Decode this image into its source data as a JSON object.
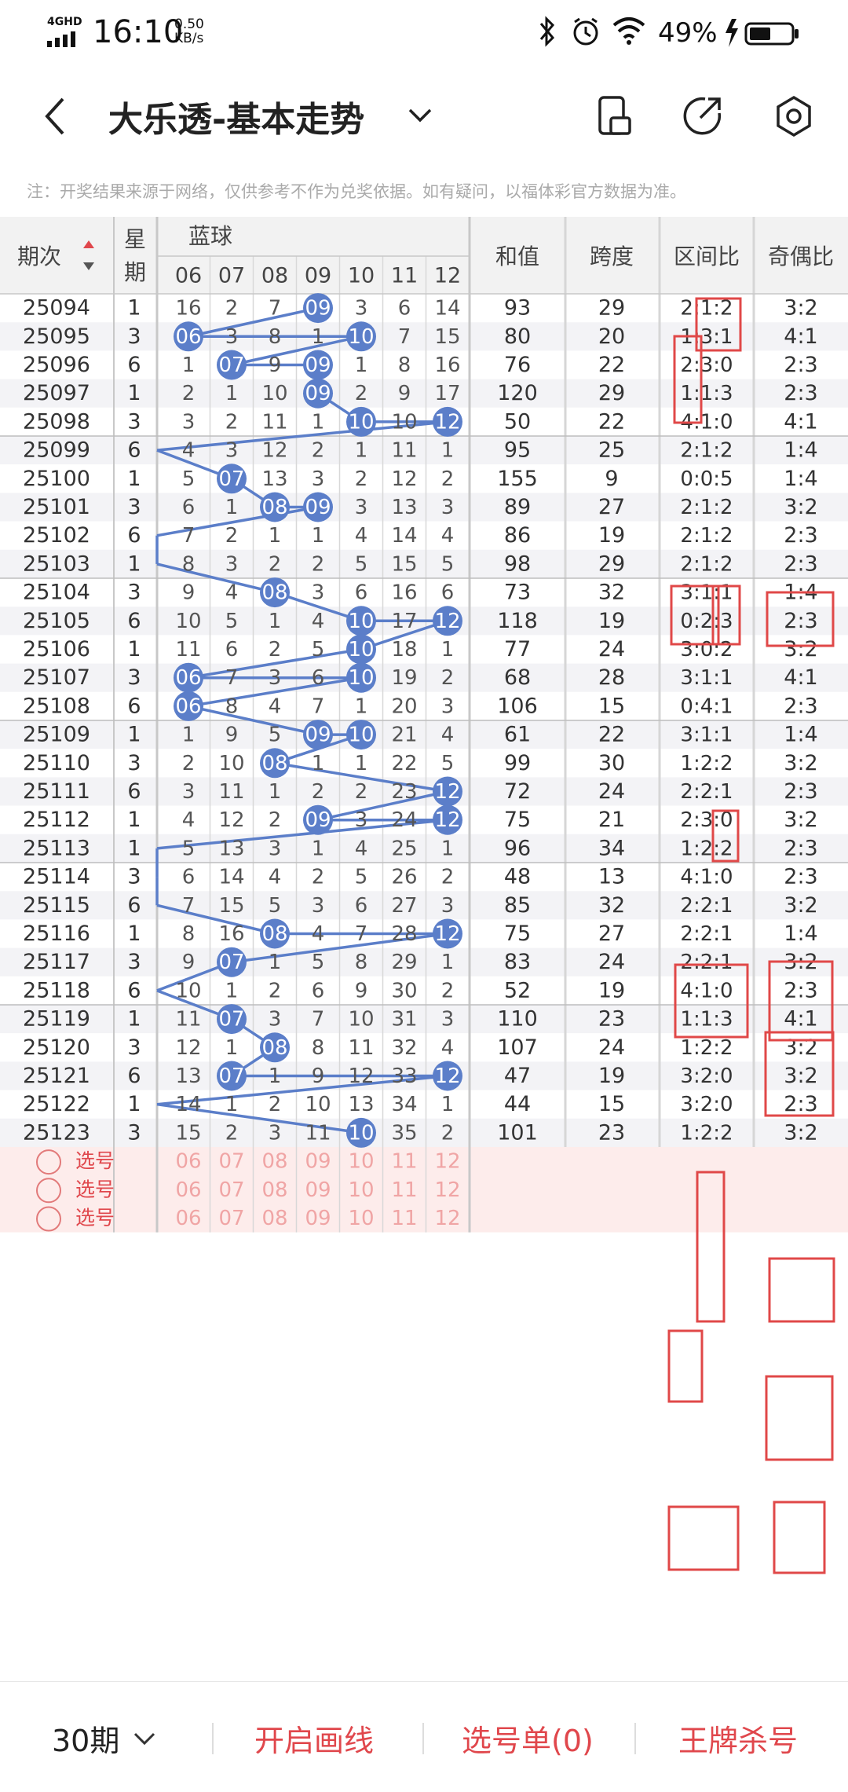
{
  "status_bar": {
    "network": "4GHD",
    "time": "16:10",
    "speed_value": "0.50",
    "speed_unit": "KB/s",
    "battery": "49%"
  },
  "header": {
    "title": "大乐透-基本走势",
    "icons": [
      "back-arrow-icon",
      "chevron-down-icon",
      "phone-icon",
      "share-icon",
      "settings-icon"
    ]
  },
  "note": "注：开奖结果来源于网络，仅供参考不作为兑奖依据。如有疑问，以福体彩官方数据为准。",
  "table": {
    "headers": {
      "period": "期次",
      "weekday_line1": "星",
      "weekday_line2": "期",
      "blue_ball": "蓝球",
      "sum": "和值",
      "span": "跨度",
      "interval_ratio": "区间比",
      "odd_even_ratio": "奇偶比",
      "columns": [
        "06",
        "07",
        "08",
        "09",
        "10",
        "11",
        "12"
      ]
    },
    "rows": [
      {
        "p": "25094",
        "w": "1",
        "c": [
          "16",
          "2",
          "7",
          "09",
          "3",
          "6",
          "14"
        ],
        "s": "93",
        "sp": "29",
        "iv": "2:1:2",
        "oe": "3:2",
        "hit": 3
      },
      {
        "p": "25095",
        "w": "3",
        "c": [
          "06",
          "3",
          "8",
          "1",
          "10",
          "7",
          "15"
        ],
        "s": "80",
        "sp": "20",
        "iv": "1:3:1",
        "oe": "4:1",
        "hit": 0,
        "hit2": 4
      },
      {
        "p": "25096",
        "w": "6",
        "c": [
          "1",
          "07",
          "9",
          "09",
          "1",
          "8",
          "16"
        ],
        "s": "76",
        "sp": "22",
        "iv": "2:3:0",
        "oe": "2:3",
        "hit": 1,
        "hit2": 3
      },
      {
        "p": "25097",
        "w": "1",
        "c": [
          "2",
          "1",
          "10",
          "09",
          "2",
          "9",
          "17"
        ],
        "s": "120",
        "sp": "29",
        "iv": "1:1:3",
        "oe": "2:3",
        "hit": 3
      },
      {
        "p": "25098",
        "w": "3",
        "c": [
          "3",
          "2",
          "11",
          "1",
          "10",
          "10",
          "12"
        ],
        "s": "50",
        "sp": "22",
        "iv": "4:1:0",
        "oe": "4:1",
        "hit": 4,
        "hit2": 6
      },
      {
        "p": "25099",
        "w": "6",
        "c": [
          "4",
          "3",
          "12",
          "2",
          "1",
          "11",
          "1"
        ],
        "s": "95",
        "sp": "25",
        "iv": "2:1:2",
        "oe": "1:4",
        "hit": -1
      },
      {
        "p": "25100",
        "w": "1",
        "c": [
          "5",
          "07",
          "13",
          "3",
          "2",
          "12",
          "2"
        ],
        "s": "155",
        "sp": "9",
        "iv": "0:0:5",
        "oe": "1:4",
        "hit": 1
      },
      {
        "p": "25101",
        "w": "3",
        "c": [
          "6",
          "1",
          "08",
          "09",
          "3",
          "13",
          "3"
        ],
        "s": "89",
        "sp": "27",
        "iv": "2:1:2",
        "oe": "3:2",
        "hit": 2,
        "hit2": 3
      },
      {
        "p": "25102",
        "w": "6",
        "c": [
          "7",
          "2",
          "1",
          "1",
          "4",
          "14",
          "4"
        ],
        "s": "86",
        "sp": "19",
        "iv": "2:1:2",
        "oe": "2:3",
        "hit": -1
      },
      {
        "p": "25103",
        "w": "1",
        "c": [
          "8",
          "3",
          "2",
          "2",
          "5",
          "15",
          "5"
        ],
        "s": "98",
        "sp": "29",
        "iv": "2:1:2",
        "oe": "2:3",
        "hit": -1
      },
      {
        "p": "25104",
        "w": "3",
        "c": [
          "9",
          "4",
          "08",
          "3",
          "6",
          "16",
          "6"
        ],
        "s": "73",
        "sp": "32",
        "iv": "3:1:1",
        "oe": "1:4",
        "hit": 2
      },
      {
        "p": "25105",
        "w": "6",
        "c": [
          "10",
          "5",
          "1",
          "4",
          "10",
          "17",
          "12"
        ],
        "s": "118",
        "sp": "19",
        "iv": "0:2:3",
        "oe": "2:3",
        "hit": 4,
        "hit2": 6
      },
      {
        "p": "25106",
        "w": "1",
        "c": [
          "11",
          "6",
          "2",
          "5",
          "10",
          "18",
          "1"
        ],
        "s": "77",
        "sp": "24",
        "iv": "3:0:2",
        "oe": "3:2",
        "hit": 4
      },
      {
        "p": "25107",
        "w": "3",
        "c": [
          "06",
          "7",
          "3",
          "6",
          "10",
          "19",
          "2"
        ],
        "s": "68",
        "sp": "28",
        "iv": "3:1:1",
        "oe": "4:1",
        "hit": 0,
        "hit2": 4
      },
      {
        "p": "25108",
        "w": "6",
        "c": [
          "06",
          "8",
          "4",
          "7",
          "1",
          "20",
          "3"
        ],
        "s": "106",
        "sp": "15",
        "iv": "0:4:1",
        "oe": "2:3",
        "hit": 0
      },
      {
        "p": "25109",
        "w": "1",
        "c": [
          "1",
          "9",
          "5",
          "09",
          "10",
          "21",
          "4"
        ],
        "s": "61",
        "sp": "22",
        "iv": "3:1:1",
        "oe": "1:4",
        "hit": 3,
        "hit2": 4
      },
      {
        "p": "25110",
        "w": "3",
        "c": [
          "2",
          "10",
          "08",
          "1",
          "1",
          "22",
          "5"
        ],
        "s": "99",
        "sp": "30",
        "iv": "1:2:2",
        "oe": "3:2",
        "hit": 2
      },
      {
        "p": "25111",
        "w": "6",
        "c": [
          "3",
          "11",
          "1",
          "2",
          "2",
          "23",
          "12"
        ],
        "s": "72",
        "sp": "24",
        "iv": "2:2:1",
        "oe": "2:3",
        "hit": 6
      },
      {
        "p": "25112",
        "w": "1",
        "c": [
          "4",
          "12",
          "2",
          "09",
          "3",
          "24",
          "12"
        ],
        "s": "75",
        "sp": "21",
        "iv": "2:3:0",
        "oe": "3:2",
        "hit": 3,
        "hit2": 6
      },
      {
        "p": "25113",
        "w": "1",
        "c": [
          "5",
          "13",
          "3",
          "1",
          "4",
          "25",
          "1"
        ],
        "s": "96",
        "sp": "34",
        "iv": "1:2:2",
        "oe": "2:3",
        "hit": -1
      },
      {
        "p": "25114",
        "w": "3",
        "c": [
          "6",
          "14",
          "4",
          "2",
          "5",
          "26",
          "2"
        ],
        "s": "48",
        "sp": "13",
        "iv": "4:1:0",
        "oe": "2:3",
        "hit": -1
      },
      {
        "p": "25115",
        "w": "6",
        "c": [
          "7",
          "15",
          "5",
          "3",
          "6",
          "27",
          "3"
        ],
        "s": "85",
        "sp": "32",
        "iv": "2:2:1",
        "oe": "3:2",
        "hit": -1
      },
      {
        "p": "25116",
        "w": "1",
        "c": [
          "8",
          "16",
          "08",
          "4",
          "7",
          "28",
          "12"
        ],
        "s": "75",
        "sp": "27",
        "iv": "2:2:1",
        "oe": "1:4",
        "hit": 2,
        "hit2": 6
      },
      {
        "p": "25117",
        "w": "3",
        "c": [
          "9",
          "07",
          "1",
          "5",
          "8",
          "29",
          "1"
        ],
        "s": "83",
        "sp": "24",
        "iv": "2:2:1",
        "oe": "3:2",
        "hit": 1
      },
      {
        "p": "25118",
        "w": "6",
        "c": [
          "10",
          "1",
          "2",
          "6",
          "9",
          "30",
          "2"
        ],
        "s": "52",
        "sp": "19",
        "iv": "4:1:0",
        "oe": "2:3",
        "hit": -1
      },
      {
        "p": "25119",
        "w": "1",
        "c": [
          "11",
          "07",
          "3",
          "7",
          "10",
          "31",
          "3"
        ],
        "s": "110",
        "sp": "23",
        "iv": "1:1:3",
        "oe": "4:1",
        "hit": 1
      },
      {
        "p": "25120",
        "w": "3",
        "c": [
          "12",
          "1",
          "08",
          "8",
          "11",
          "32",
          "4"
        ],
        "s": "107",
        "sp": "24",
        "iv": "1:2:2",
        "oe": "3:2",
        "hit": 2
      },
      {
        "p": "25121",
        "w": "6",
        "c": [
          "13",
          "07",
          "1",
          "9",
          "12",
          "33",
          "12"
        ],
        "s": "47",
        "sp": "19",
        "iv": "3:2:0",
        "oe": "3:2",
        "hit": 1,
        "hit2": 6
      },
      {
        "p": "25122",
        "w": "1",
        "c": [
          "14",
          "1",
          "2",
          "10",
          "13",
          "34",
          "1"
        ],
        "s": "44",
        "sp": "15",
        "iv": "3:2:0",
        "oe": "2:3",
        "hit": -1
      },
      {
        "p": "25123",
        "w": "3",
        "c": [
          "15",
          "2",
          "3",
          "11",
          "10",
          "35",
          "2"
        ],
        "s": "101",
        "sp": "23",
        "iv": "1:2:2",
        "oe": "3:2",
        "hit": 4
      }
    ],
    "pick_rows": [
      {
        "label": "选号",
        "numbers": [
          "06",
          "07",
          "08",
          "09",
          "10",
          "11",
          "12"
        ]
      },
      {
        "label": "选号",
        "numbers": [
          "06",
          "07",
          "08",
          "09",
          "10",
          "11",
          "12"
        ]
      },
      {
        "label": "选号",
        "numbers": [
          "06",
          "07",
          "08",
          "09",
          "10",
          "11",
          "12"
        ]
      }
    ]
  },
  "bottom_bar": {
    "period_select": "30期",
    "draw_line": "开启画线",
    "pick_list": "选号单(0)",
    "kill_numbers": "王牌杀号"
  },
  "colors": {
    "blue_ball": "#5b7ec9",
    "red_text": "#e0474c",
    "pick_bg": "#fdeceb",
    "header_bg": "#f2f2f2"
  }
}
